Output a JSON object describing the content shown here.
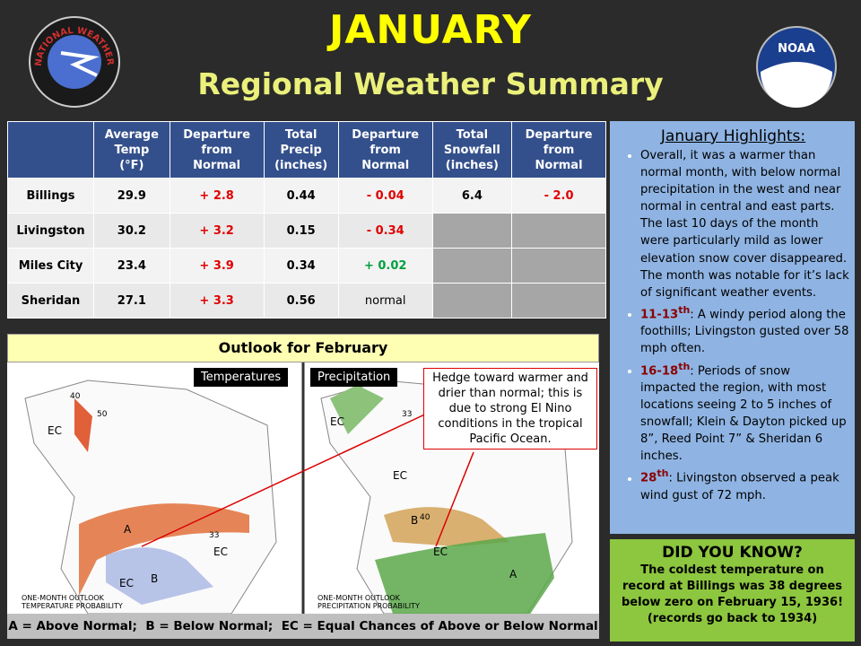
{
  "header": {
    "title": "JANUARY",
    "subtitle": "Regional Weather Summary",
    "nws_logo": "NATIONAL WEATHER SERVICE",
    "noaa_logo": "NOAA"
  },
  "table": {
    "columns": [
      "Average\nTemp\n(°F)",
      "Departure\nfrom\nNormal",
      "Total\nPrecip\n(inches)",
      "Departure\nfrom\nNormal",
      "Total\nSnowfall\n(inches)",
      "Departure\nfrom\nNormal"
    ],
    "rows": [
      [
        "Billings",
        "29.9",
        "+ 2.8",
        "0.44",
        "- 0.04",
        "6.4",
        "- 2.0"
      ],
      [
        "Livingston",
        "30.2",
        "+ 3.2",
        "0.15",
        "- 0.34",
        null,
        null
      ],
      [
        "Miles City",
        "23.4",
        "+ 3.9",
        "0.34",
        "+ 0.02",
        null,
        null
      ],
      [
        "Sheridan",
        "27.1",
        "+ 3.3",
        "0.56",
        "normal",
        null,
        null
      ]
    ]
  },
  "outlook": {
    "title": "Outlook for February",
    "temperatures_label": "Temperatures",
    "precipitation_label": "Precipitation",
    "callout": "Hedge toward warmer and drier than normal; this is due to strong El Nino conditions in the tropical Pacific Ocean.",
    "temperature_map": {
      "caption": "ONE-MONTH OUTLOOK\nTEMPERATURE PROBABILITY",
      "labels": [
        "A",
        "EC",
        "EC",
        "B",
        "EC",
        "40",
        "50",
        "33"
      ]
    },
    "precipitation_map": {
      "caption": "ONE-MONTH OUTLOOK\nPRECIPITATION PROBABILITY",
      "labels": [
        "B",
        "EC",
        "EC",
        "A",
        "EC",
        "40",
        "33"
      ]
    },
    "legend": "A = Above Normal;  B = Below Normal;  EC = Equal Chances of Above or Below Normal"
  },
  "highlights": {
    "title": "January Highlights:",
    "items": [
      {
        "text": "Overall, it was a warmer than normal month, with below normal precipitation in the west and near normal in central and east parts. The last 10 days of the month were particularly mild as lower elevation snow cover disappeared. The month was notable for it’s lack of significant weather events."
      },
      {
        "date": "11-13",
        "suffix": "th",
        "text": ": A windy period along the foothills; Livingston gusted over 58 mph often."
      },
      {
        "date": "16-18",
        "suffix": "th",
        "text": ": Periods of snow impacted the region, with most locations seeing 2 to 5 inches of snowfall; Klein & Dayton picked up 8”, Reed Point 7” & Sheridan 6 inches."
      },
      {
        "date": "28",
        "suffix": "th",
        "text": ": Livingston observed a peak wind gust of 72 mph."
      }
    ]
  },
  "did_you_know": {
    "title": "DID YOU KNOW?",
    "text": "The coldest temperature on record at Billings was 38 degrees below zero on February 15, 1936! (records go back to 1934)"
  }
}
